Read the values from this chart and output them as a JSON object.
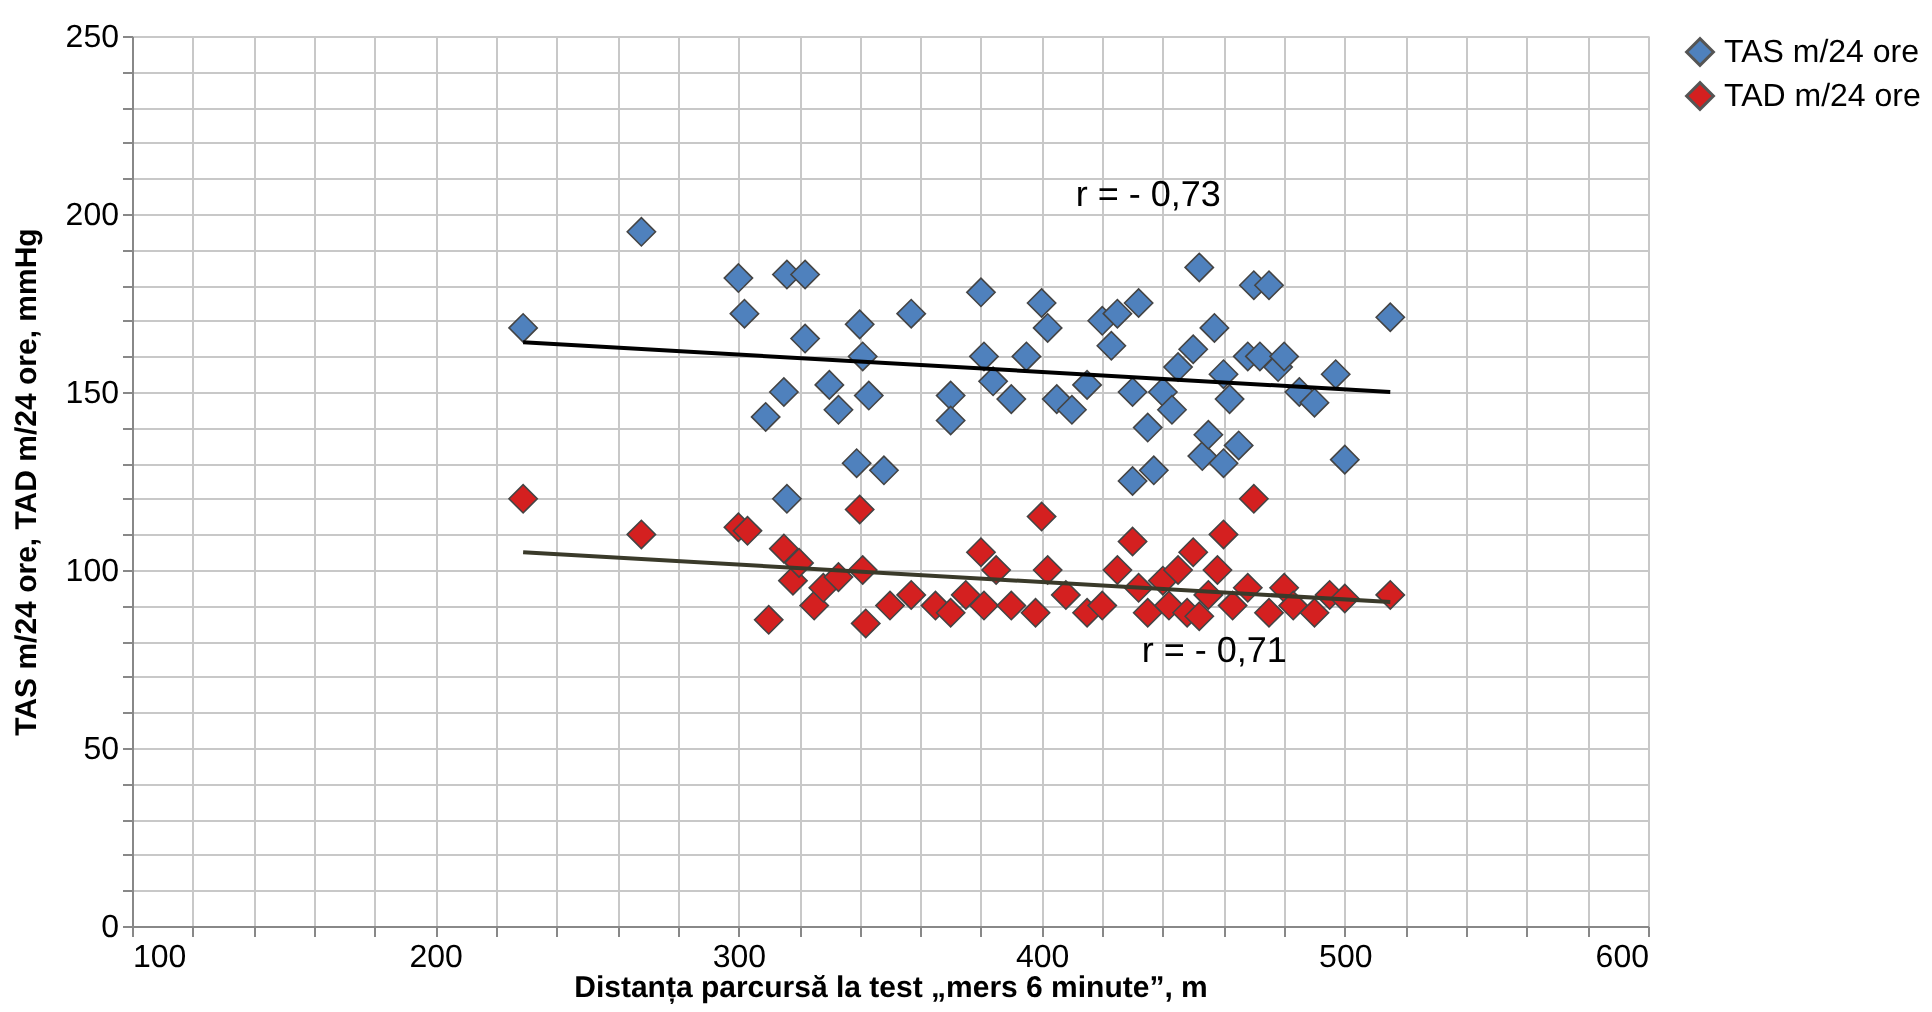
{
  "chart_data": {
    "type": "scatter",
    "xlabel": "Distanța parcursă la test „mers 6 minute”, m",
    "ylabel": "TAS m/24 ore, TAD m/24 ore, mmHg",
    "xlim": [
      100,
      600
    ],
    "ylim": [
      0,
      250
    ],
    "xticks": [
      100,
      {
        "value": 120,
        "label": null
      },
      {
        "value": 140,
        "label": null
      },
      {
        "value": 160,
        "label": null
      },
      {
        "value": 180,
        "label": null
      },
      200,
      {
        "value": 220,
        "label": null
      },
      {
        "value": 240,
        "label": null
      },
      {
        "value": 260,
        "label": null
      },
      {
        "value": 280,
        "label": null
      },
      300,
      {
        "value": 320,
        "label": null
      },
      {
        "value": 340,
        "label": null
      },
      {
        "value": 360,
        "label": null
      },
      {
        "value": 380,
        "label": null
      },
      400,
      {
        "value": 420,
        "label": null
      },
      {
        "value": 440,
        "label": null
      },
      {
        "value": 460,
        "label": null
      },
      {
        "value": 480,
        "label": null
      },
      500,
      {
        "value": 520,
        "label": null
      },
      {
        "value": 540,
        "label": null
      },
      {
        "value": 560,
        "label": null
      },
      {
        "value": 580,
        "label": null
      },
      600
    ],
    "yticks": [
      0,
      {
        "value": 10,
        "label": null
      },
      {
        "value": 20,
        "label": null
      },
      {
        "value": 30,
        "label": null
      },
      {
        "value": 40,
        "label": null
      },
      50,
      {
        "value": 60,
        "label": null
      },
      {
        "value": 70,
        "label": null
      },
      {
        "value": 80,
        "label": null
      },
      {
        "value": 90,
        "label": null
      },
      100,
      {
        "value": 110,
        "label": null
      },
      {
        "value": 120,
        "label": null
      },
      {
        "value": 130,
        "label": null
      },
      {
        "value": 140,
        "label": null
      },
      150,
      {
        "value": 160,
        "label": null
      },
      {
        "value": 170,
        "label": null
      },
      {
        "value": 180,
        "label": null
      },
      {
        "value": 190,
        "label": null
      },
      200,
      {
        "value": 210,
        "label": null
      },
      {
        "value": 220,
        "label": null
      },
      {
        "value": 230,
        "label": null
      },
      {
        "value": 240,
        "label": null
      },
      250
    ],
    "grid": true,
    "legend": "right",
    "marker": "diamond",
    "series": [
      {
        "name": "TAS m/24 ore",
        "color": "#4f81bd",
        "x": [
          229,
          268,
          300,
          302,
          309,
          315,
          316,
          316,
          322,
          322,
          330,
          333,
          339,
          340,
          341,
          343,
          348,
          357,
          370,
          370,
          380,
          381,
          384,
          390,
          395,
          400,
          402,
          405,
          410,
          415,
          420,
          423,
          425,
          430,
          430,
          432,
          435,
          437,
          440,
          443,
          445,
          450,
          452,
          453,
          455,
          457,
          460,
          460,
          462,
          465,
          468,
          470,
          472,
          475,
          478,
          480,
          485,
          490,
          497,
          500,
          515
        ],
        "values": [
          168,
          195,
          182,
          172,
          143,
          150,
          120,
          183,
          183,
          165,
          152,
          145,
          130,
          169,
          160,
          149,
          128,
          172,
          149,
          142,
          178,
          160,
          153,
          148,
          160,
          175,
          168,
          148,
          145,
          152,
          170,
          163,
          172,
          125,
          150,
          175,
          140,
          128,
          150,
          145,
          157,
          162,
          185,
          132,
          138,
          168,
          155,
          130,
          148,
          135,
          160,
          180,
          160,
          180,
          157,
          160,
          150,
          147,
          155,
          131,
          171
        ]
      },
      {
        "name": "TAD m/24 ore",
        "color": "#d42020",
        "x": [
          229,
          268,
          300,
          303,
          310,
          315,
          318,
          320,
          325,
          328,
          333,
          340,
          341,
          342,
          350,
          357,
          365,
          370,
          375,
          380,
          381,
          385,
          390,
          398,
          400,
          402,
          408,
          415,
          420,
          425,
          430,
          432,
          435,
          440,
          442,
          445,
          448,
          450,
          452,
          455,
          458,
          460,
          463,
          468,
          470,
          475,
          480,
          483,
          490,
          495,
          500,
          515
        ],
        "values": [
          120,
          110,
          112,
          111,
          86,
          106,
          97,
          102,
          90,
          95,
          98,
          117,
          100,
          85,
          90,
          93,
          90,
          88,
          93,
          105,
          90,
          100,
          90,
          88,
          115,
          100,
          93,
          88,
          90,
          100,
          108,
          95,
          88,
          97,
          90,
          100,
          88,
          105,
          87,
          93,
          100,
          110,
          90,
          95,
          120,
          88,
          95,
          90,
          88,
          93,
          92,
          93
        ]
      },
      {
        "type": "line",
        "marker": "none",
        "color": "#000000",
        "x": [
          229,
          515
        ],
        "values": [
          164,
          150
        ]
      },
      {
        "type": "line",
        "marker": "none",
        "color": "#3a3a2a",
        "x": [
          229,
          515
        ],
        "values": [
          105,
          91
        ]
      }
    ],
    "annotations": [
      "r = - 0,73",
      "r = - 0,71"
    ]
  }
}
